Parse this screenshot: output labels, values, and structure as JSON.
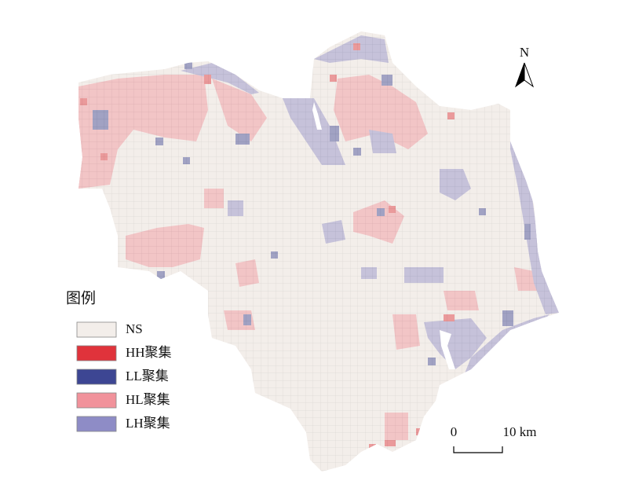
{
  "legend": {
    "title": "图例",
    "items": [
      {
        "label": "NS",
        "color": "#f3eeea"
      },
      {
        "label": "HH聚集",
        "color": "#e0333b"
      },
      {
        "label": "LL聚集",
        "color": "#3d4693"
      },
      {
        "label": "HL聚集",
        "color": "#f1929b"
      },
      {
        "label": "LH聚集",
        "color": "#8e8cc6"
      }
    ]
  },
  "north": "N",
  "scale": {
    "start": "0",
    "end": "10 km"
  }
}
